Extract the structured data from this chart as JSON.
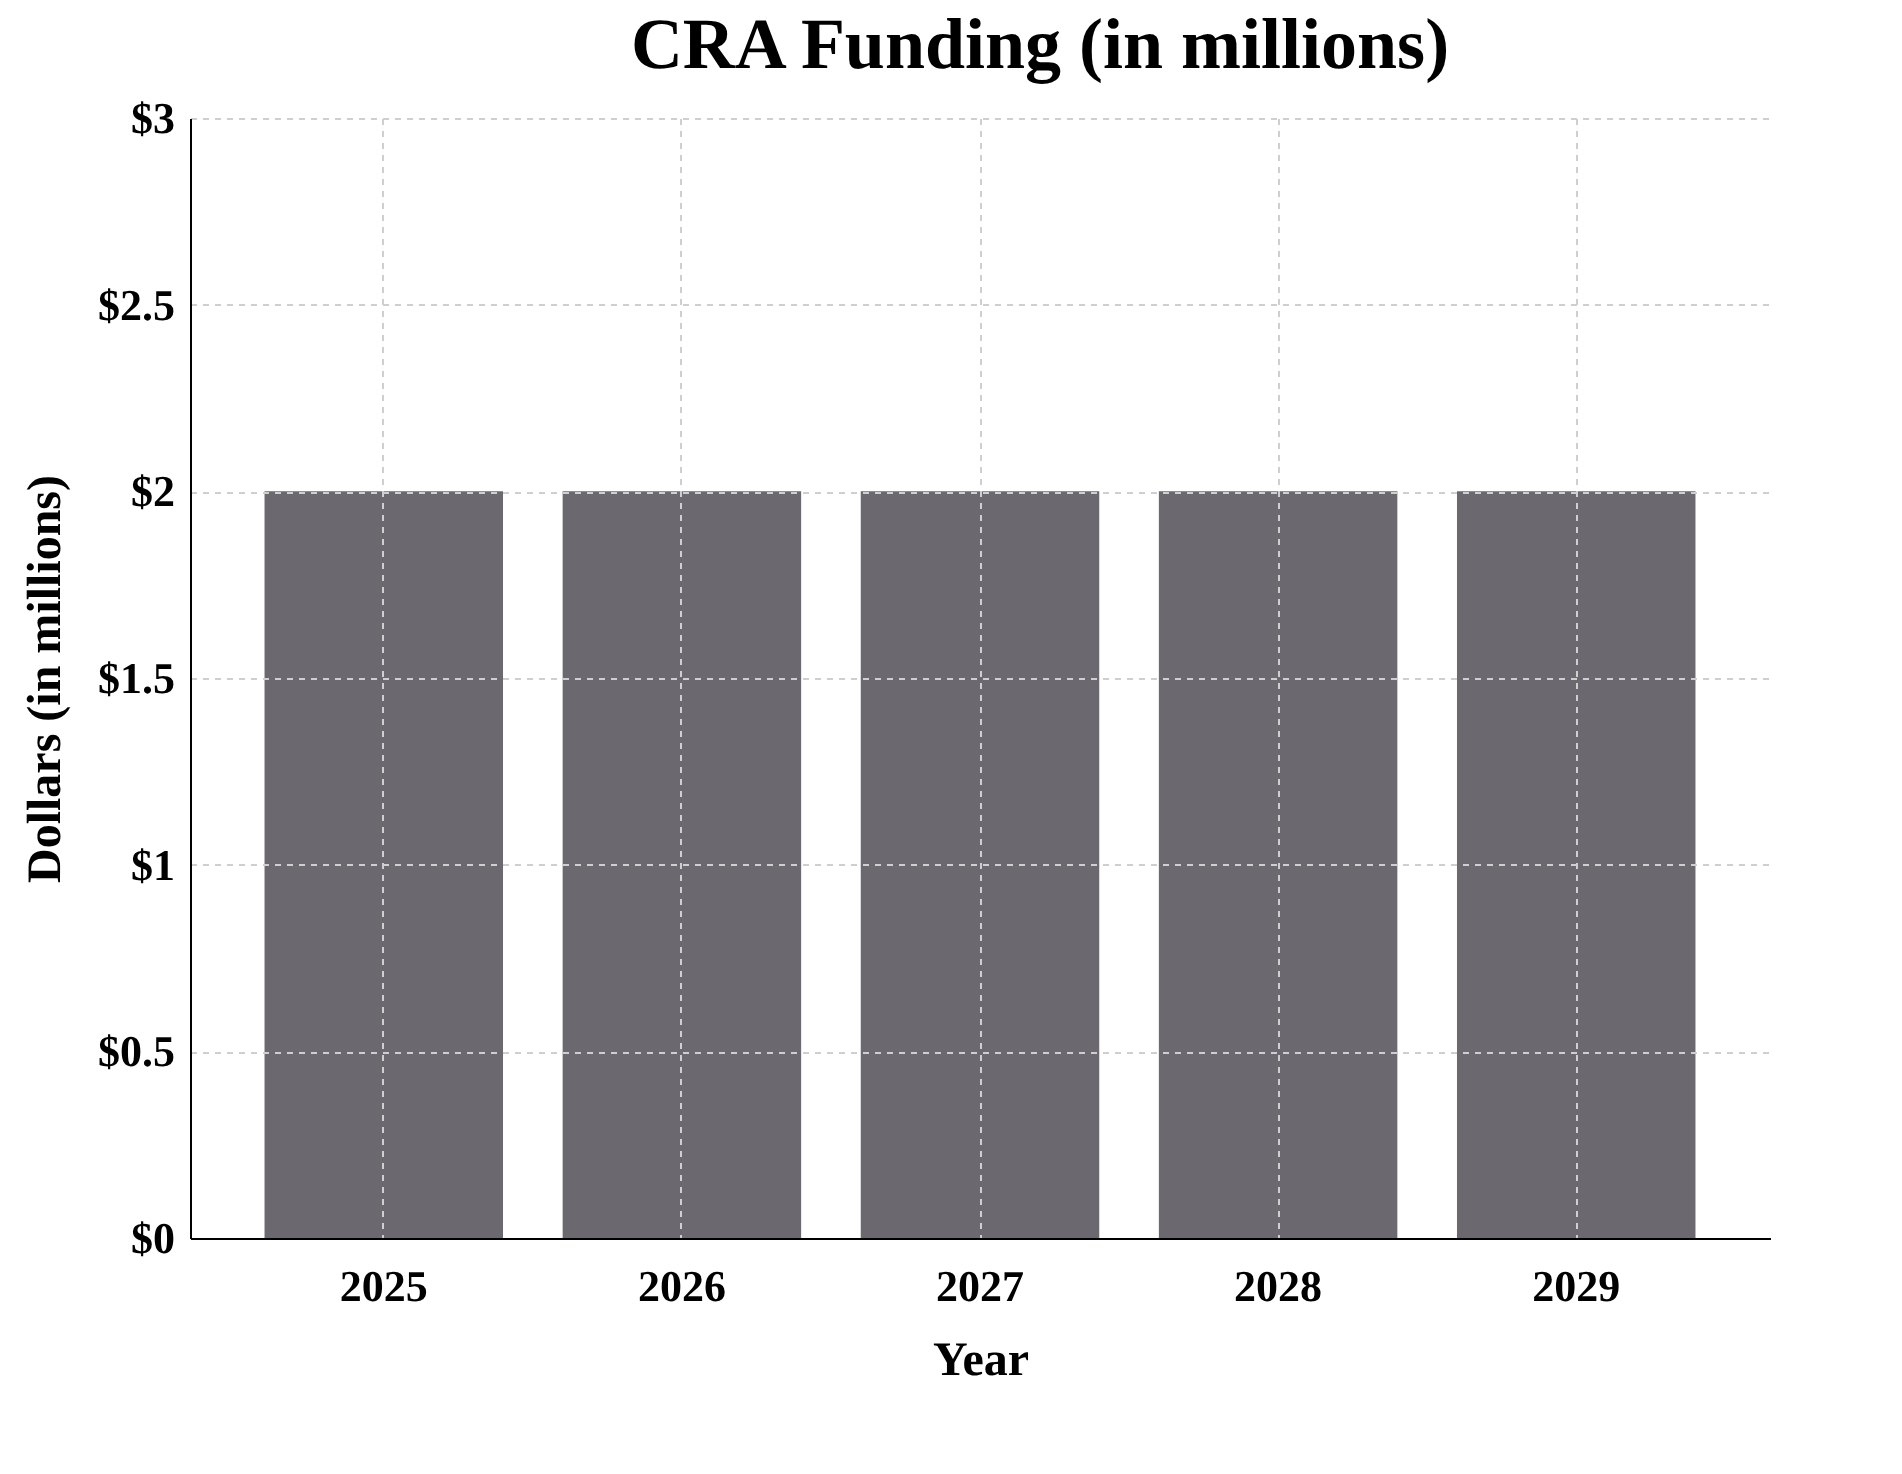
{
  "chart_data": {
    "type": "bar",
    "title": "CRA Funding (in millions)",
    "xlabel": "Year",
    "ylabel": "Dollars (in millions)",
    "categories": [
      "2025",
      "2026",
      "2027",
      "2028",
      "2029"
    ],
    "values": [
      2,
      2,
      2,
      2,
      2
    ],
    "color": "#6b6870",
    "ylim": [
      0,
      3
    ],
    "yticks": [
      {
        "value": 0,
        "label": "$0"
      },
      {
        "value": 0.5,
        "label": "$0.5"
      },
      {
        "value": 1,
        "label": "$1"
      },
      {
        "value": 1.5,
        "label": "$1.5"
      },
      {
        "value": 2,
        "label": "$2"
      },
      {
        "value": 2.5,
        "label": "$2.5"
      },
      {
        "value": 3,
        "label": "$3"
      }
    ],
    "grid": true
  }
}
